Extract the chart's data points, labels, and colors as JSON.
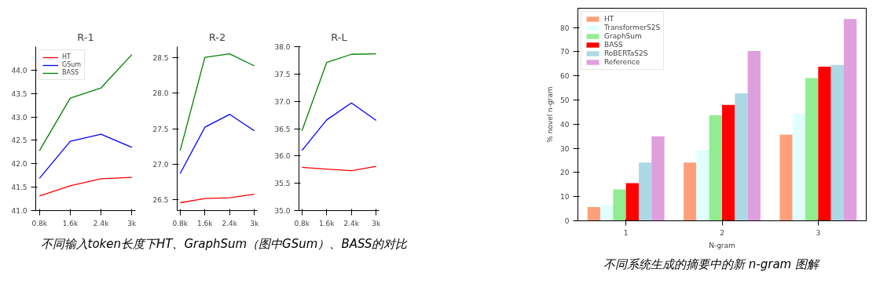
{
  "chart_data": [
    {
      "type": "line",
      "title": "R-1",
      "categories": [
        "0.8k",
        "1.6k",
        "2.4k",
        "3k"
      ],
      "ylim": [
        41.0,
        44.5
      ],
      "yticks": [
        {
          "value": 41,
          "label": "41.0"
        },
        41.5,
        {
          "value": 42,
          "label": "42.0"
        },
        42.5,
        {
          "value": 43,
          "label": "43.0"
        },
        43.5,
        {
          "value": 44,
          "label": "44.0"
        }
      ],
      "grid": false,
      "legend": "top left",
      "series": [
        {
          "name": "HT",
          "color": "#ff0000",
          "values": [
            41.31,
            41.53,
            41.68,
            41.71
          ]
        },
        {
          "name": "GSum",
          "color": "#0000ff",
          "values": [
            41.69,
            42.48,
            42.63,
            42.35
          ]
        },
        {
          "name": "BASS",
          "color": "#008000",
          "values": [
            42.28,
            43.4,
            43.62,
            44.33
          ]
        }
      ],
      "annotations": [
        "不同输入token长度下HT、GraphSum（图中GSum）、BASS的对比"
      ]
    },
    {
      "type": "line",
      "title": "R-2",
      "categories": [
        "0.8k",
        "1.6k",
        "2.4k",
        "3k"
      ],
      "ylim": [
        26.35,
        28.65
      ],
      "yticks": [
        26.5,
        {
          "value": 27,
          "label": "27.0"
        },
        27.5,
        {
          "value": 28,
          "label": "28.0"
        },
        28.5
      ],
      "grid": false,
      "series": [
        {
          "color": "#ff0000",
          "values": [
            26.46,
            26.52,
            26.53,
            26.58
          ]
        },
        {
          "color": "#0000ff",
          "values": [
            26.87,
            27.52,
            27.7,
            27.47
          ]
        },
        {
          "color": "#008000",
          "values": [
            27.19,
            28.5,
            28.55,
            28.38
          ]
        }
      ]
    },
    {
      "type": "line",
      "title": "R-L",
      "categories": [
        "0.8k",
        "1.6k",
        "2.4k",
        "3k"
      ],
      "ylim": [
        35.0,
        38.0
      ],
      "yticks": [
        {
          "value": 35,
          "label": "35.0"
        },
        35.5,
        {
          "value": 36,
          "label": "36.0"
        },
        36.5,
        {
          "value": 37,
          "label": "37.0"
        },
        37.5,
        {
          "value": 38,
          "label": "38.0"
        }
      ],
      "grid": false,
      "series": [
        {
          "color": "#ff0000",
          "values": [
            35.79,
            35.76,
            35.73,
            35.81
          ]
        },
        {
          "color": "#0000ff",
          "values": [
            36.1,
            36.66,
            36.97,
            36.65
          ]
        },
        {
          "color": "#008000",
          "values": [
            36.46,
            37.71,
            37.86,
            37.87
          ]
        }
      ]
    },
    {
      "type": "bar",
      "xlabel": "N-gram",
      "ylabel": "% novel n-gram",
      "categories": [
        "1",
        "2",
        "3"
      ],
      "ylim": [
        0,
        88
      ],
      "yticks": [
        0,
        10,
        20,
        30,
        40,
        50,
        60,
        70,
        80
      ],
      "grid": false,
      "legend": "top left",
      "series": [
        {
          "name": "HT",
          "color": "#ffa07a",
          "values": [
            5.7,
            24.1,
            35.6
          ]
        },
        {
          "name": "TransformerS2S",
          "color": "#e0ffff",
          "values": [
            6.6,
            29.4,
            44.5
          ]
        },
        {
          "name": "GraphSum",
          "color": "#90ee90",
          "values": [
            13.0,
            43.7,
            59.1
          ]
        },
        {
          "name": "BASS",
          "color": "#ff0000",
          "values": [
            15.6,
            48.0,
            63.8
          ]
        },
        {
          "name": "RoBERTaS2S",
          "color": "#add8e6",
          "values": [
            24.1,
            52.8,
            64.5
          ]
        },
        {
          "name": "Reference",
          "color": "#dda0dd",
          "values": [
            35.0,
            70.3,
            83.5
          ]
        }
      ],
      "annotations": [
        "不同系统生成的摘要中的新 n-gram 图解"
      ]
    }
  ]
}
